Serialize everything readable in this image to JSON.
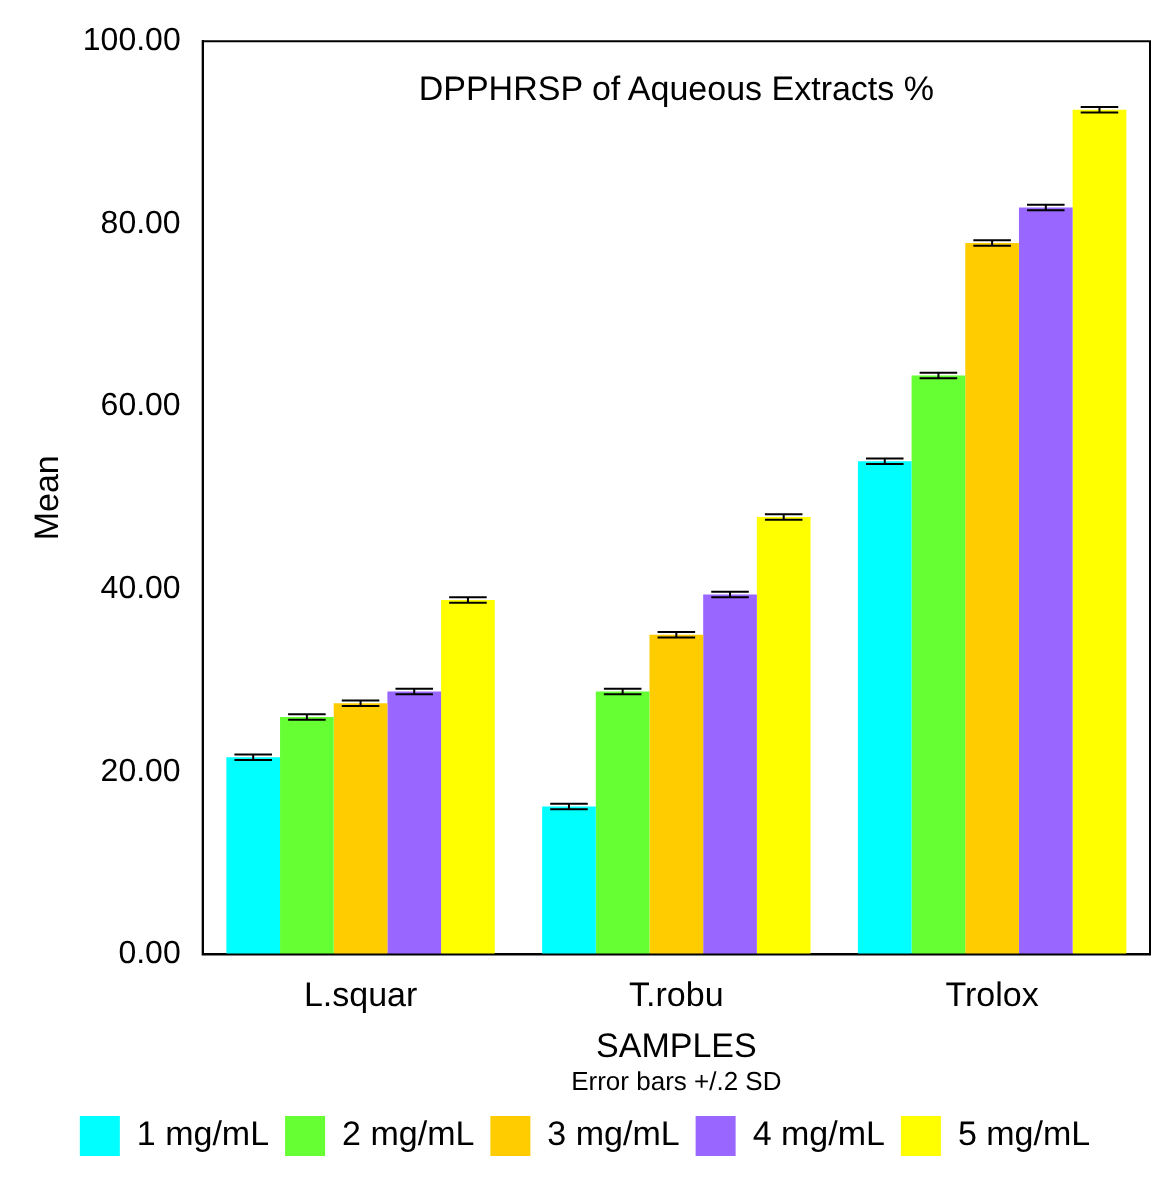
{
  "chart_data": {
    "type": "bar",
    "title": "DPPHRSP of Aqueous Extracts %",
    "xlabel": "SAMPLES",
    "ylabel": "Mean",
    "annotations": [
      "Error bars +/.2 SD"
    ],
    "categories": [
      "L.squar",
      "T.robu",
      "Trolox"
    ],
    "series": [
      {
        "name": "1 mg/mL",
        "color": "#00ffff",
        "values": [
          21.6,
          16.2,
          54.0
        ],
        "errors": [
          0.3,
          0.3,
          0.3
        ]
      },
      {
        "name": "2 mg/mL",
        "color": "#66ff33",
        "values": [
          26.0,
          28.8,
          63.4
        ],
        "errors": [
          0.3,
          0.3,
          0.3
        ]
      },
      {
        "name": "3 mg/mL",
        "color": "#ffcc00",
        "values": [
          27.5,
          35.0,
          77.9
        ],
        "errors": [
          0.3,
          0.3,
          0.3
        ]
      },
      {
        "name": "4 mg/mL",
        "color": "#9966ff",
        "values": [
          28.8,
          39.4,
          81.8
        ],
        "errors": [
          0.3,
          0.3,
          0.3
        ]
      },
      {
        "name": "5 mg/mL",
        "color": "#ffff00",
        "values": [
          38.8,
          47.9,
          92.5
        ],
        "errors": [
          0.3,
          0.3,
          0.3
        ]
      }
    ],
    "ylim": [
      0,
      100
    ],
    "yticks": [
      {
        "value": 0,
        "label": "0.00"
      },
      {
        "value": 20,
        "label": "20.00"
      },
      {
        "value": 40,
        "label": "40.00"
      },
      {
        "value": 60,
        "label": "60.00"
      },
      {
        "value": 80,
        "label": "80.00"
      },
      {
        "value": 100,
        "label": "100.00"
      }
    ],
    "grid": false,
    "legend": "bottom"
  }
}
